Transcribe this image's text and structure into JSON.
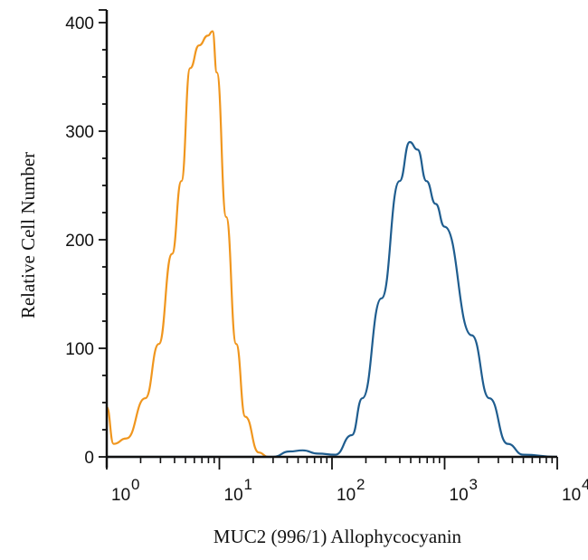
{
  "chart_data": {
    "type": "line",
    "xlabel": "MUC2 (996/1) Allophycocyanin",
    "ylabel": "Relative Cell Number",
    "x_scale": "log",
    "xlim": [
      1,
      10000
    ],
    "ylim": [
      0,
      410
    ],
    "x_ticks": [
      {
        "base": "10",
        "exp": "0",
        "value": 1
      },
      {
        "base": "10",
        "exp": "1",
        "value": 10
      },
      {
        "base": "10",
        "exp": "2",
        "value": 100
      },
      {
        "base": "10",
        "exp": "3",
        "value": 1000
      },
      {
        "base": "10",
        "exp": "4",
        "value": 10000
      }
    ],
    "y_ticks": [
      {
        "label": "0",
        "value": 0
      },
      {
        "label": "100",
        "value": 100
      },
      {
        "label": "200",
        "value": 200
      },
      {
        "label": "300",
        "value": 300
      },
      {
        "label": "400",
        "value": 400
      }
    ],
    "grid": false,
    "series": [
      {
        "color": "#f0961e",
        "x": [
          1,
          1.15,
          1.5,
          2.2,
          2.9,
          3.8,
          4.6,
          5.5,
          6.6,
          7.9,
          8.7,
          9.5,
          11.5,
          14.1,
          17,
          22.4,
          27
        ],
        "y": [
          46,
          12,
          17,
          54,
          104,
          187,
          254,
          358,
          379,
          388,
          392,
          354,
          221,
          104,
          37,
          4,
          0
        ]
      },
      {
        "color": "#1f5d8f",
        "x": [
          1,
          30,
          42,
          55,
          75,
          107,
          150,
          186,
          275,
          398,
          490,
          575,
          690,
          832,
          1000,
          1740,
          2500,
          3630,
          5000,
          10000
        ],
        "y": [
          0,
          0,
          5,
          6,
          3,
          2,
          20,
          54,
          146,
          254,
          290,
          283,
          254,
          233,
          212,
          112,
          54,
          12,
          2,
          0
        ]
      }
    ]
  }
}
